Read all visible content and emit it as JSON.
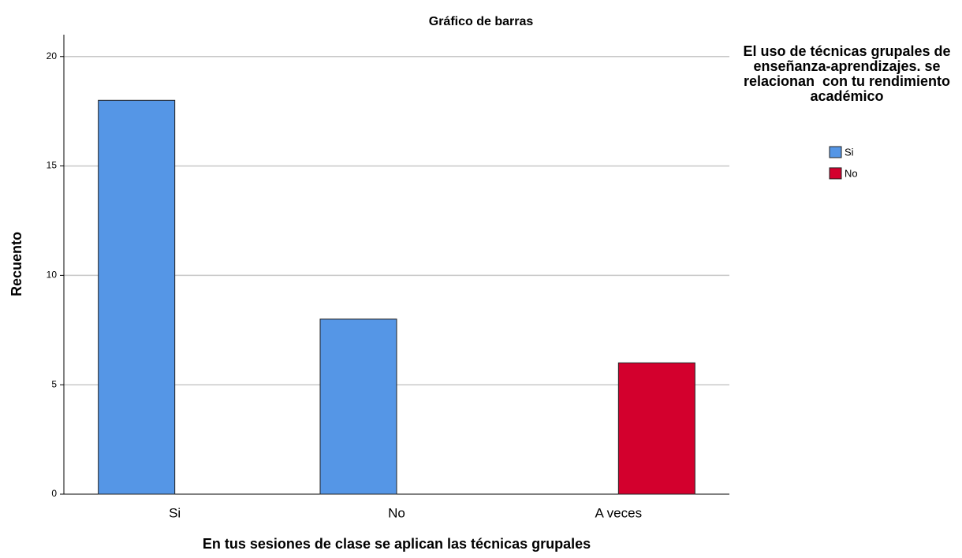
{
  "chart_data": {
    "type": "bar",
    "title": "Gráfico de barras",
    "x_label": "En tus sesiones de clase se aplican las técnicas grupales",
    "y_label": "Recuento",
    "legend_title": "El uso de técnicas grupales de enseñanza-aprendizajes. se relacionan  con tu rendimiento académico",
    "categories": [
      "Si",
      "No",
      "A veces"
    ],
    "series": [
      {
        "name": "Si",
        "color": "#5596e6",
        "values": [
          18,
          8,
          null
        ]
      },
      {
        "name": "No",
        "color": "#d3002d",
        "values": [
          null,
          null,
          6
        ]
      }
    ],
    "ylim": [
      0,
      21
    ],
    "yticks": [
      0,
      5,
      10,
      15,
      20
    ],
    "grid": true,
    "legend": "right"
  }
}
